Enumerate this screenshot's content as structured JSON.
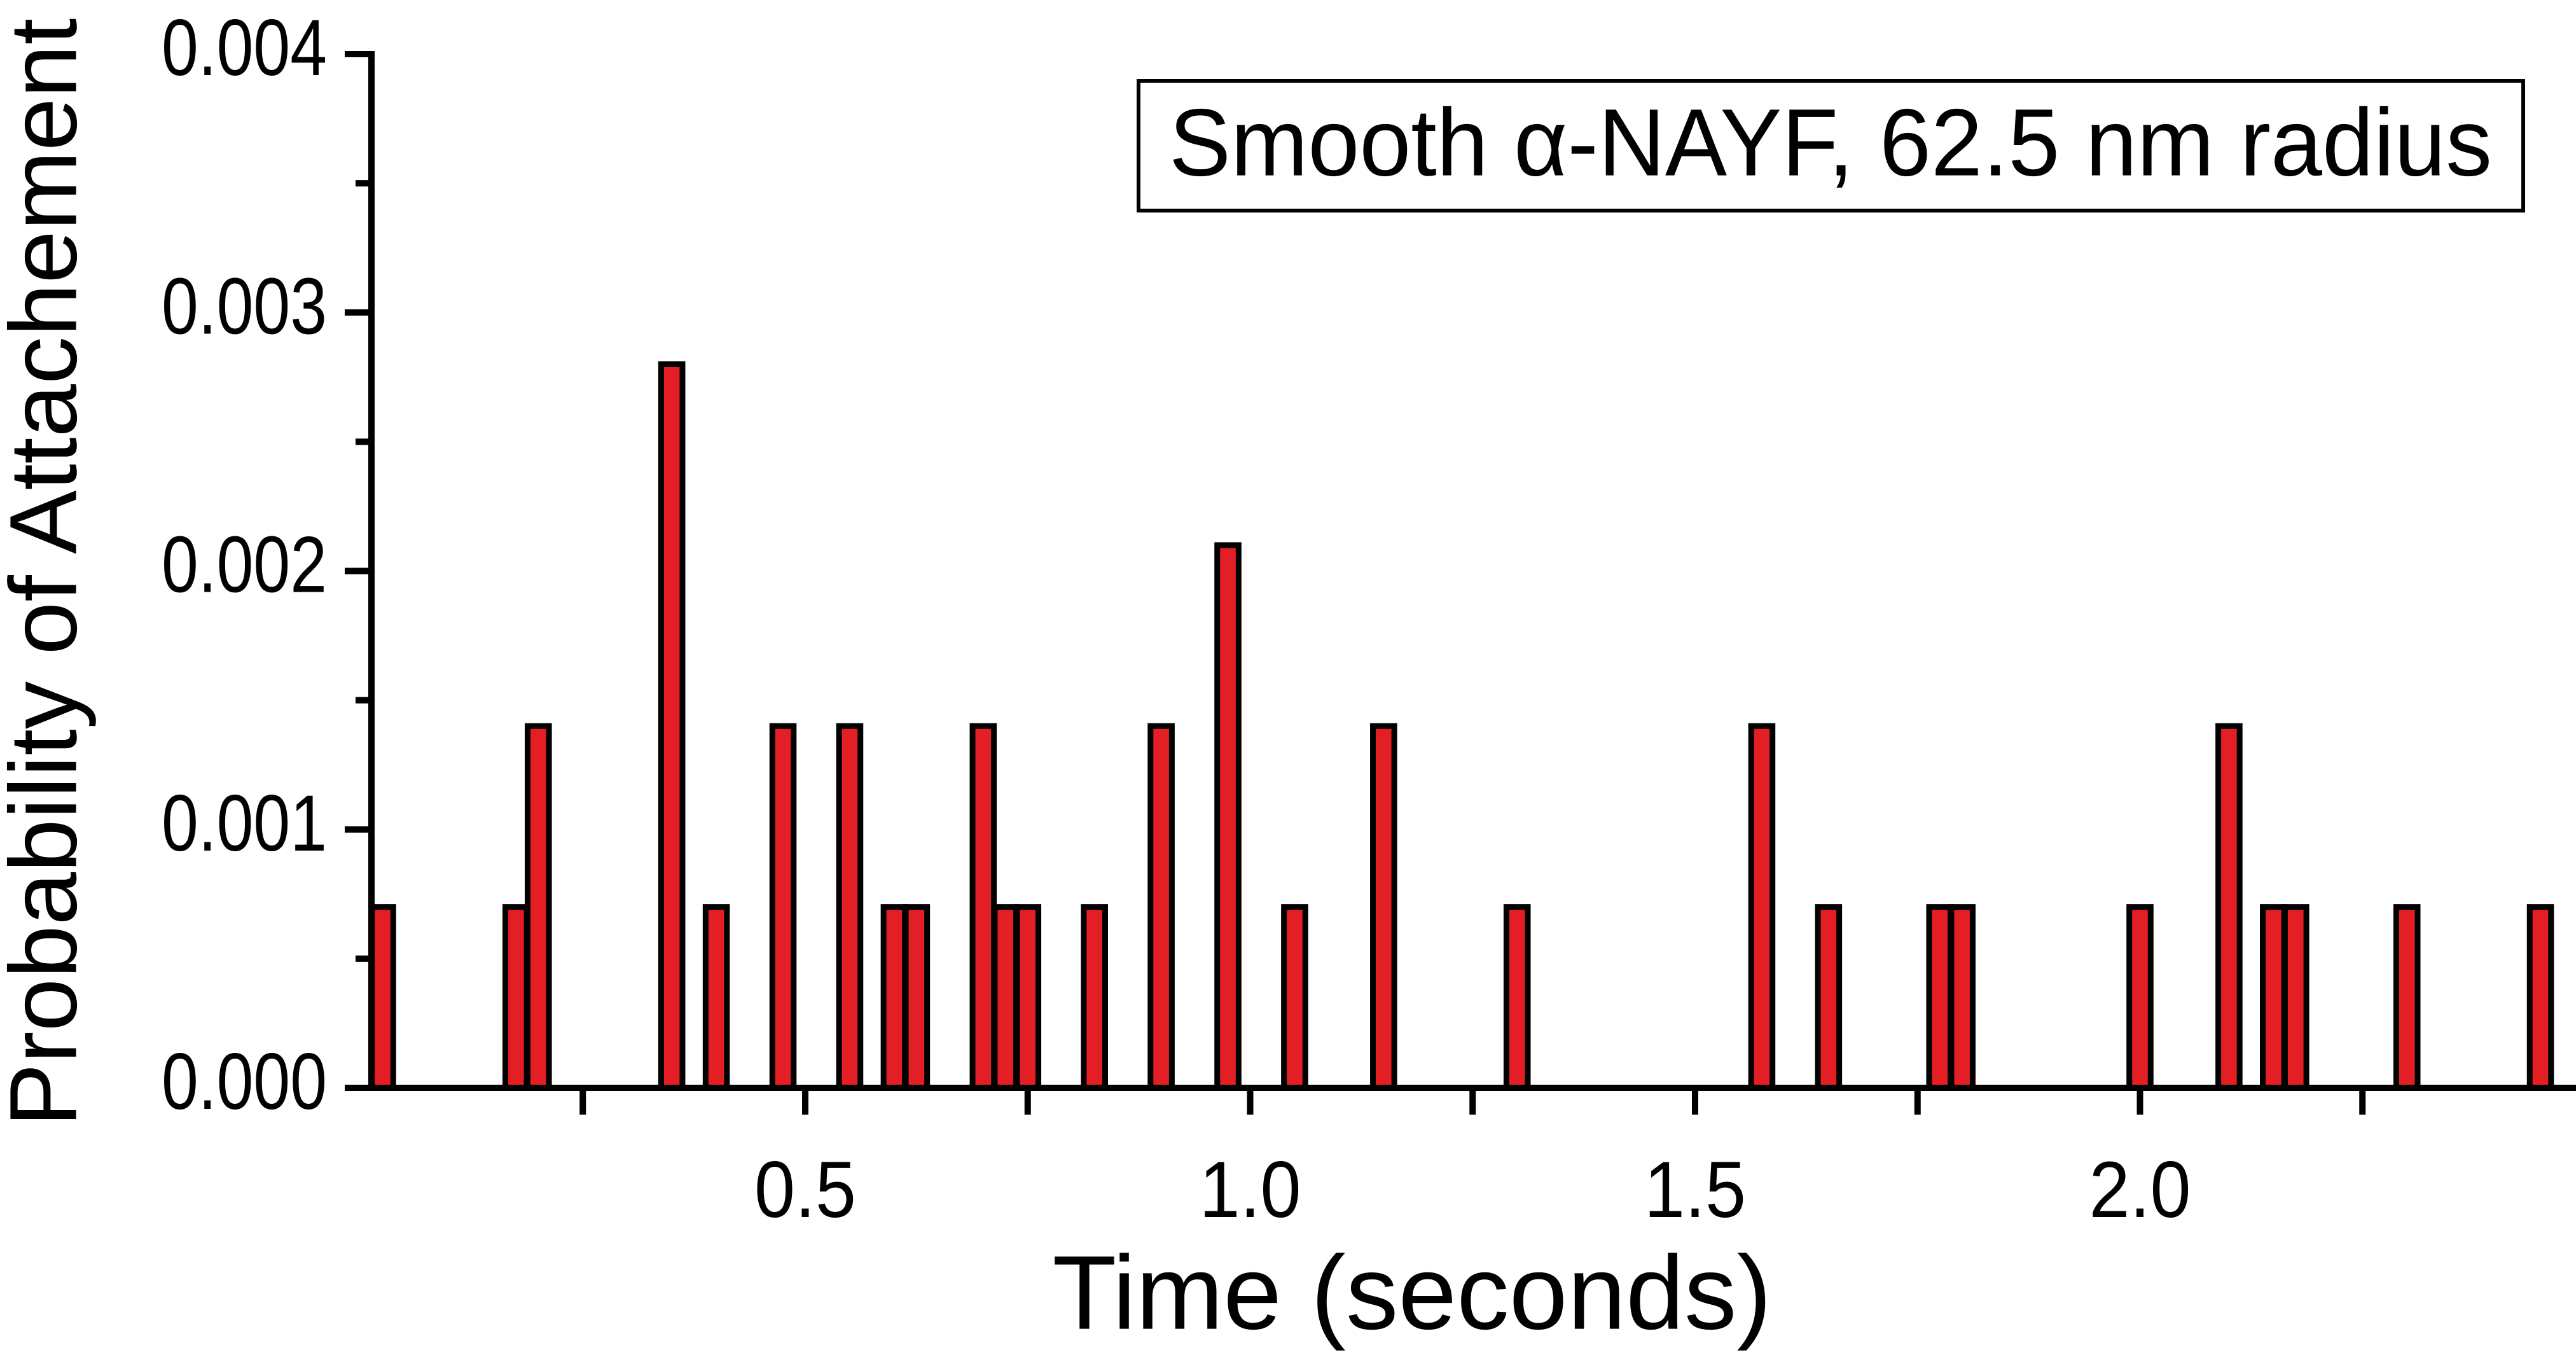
{
  "chart_data": {
    "type": "bar",
    "title": "Smooth α-NAYF, 62.5 nm radius",
    "x_label": "Time (seconds)",
    "y_label": "Probability of Attachement",
    "x": [
      0.025,
      0.175,
      0.2,
      0.35,
      0.4,
      0.475,
      0.55,
      0.6,
      0.625,
      0.7,
      0.725,
      0.75,
      0.825,
      0.9,
      0.975,
      1.05,
      1.15,
      1.3,
      1.575,
      1.65,
      1.775,
      1.8,
      2.0,
      2.1,
      2.15,
      2.175,
      2.3,
      2.45
    ],
    "values": [
      0.0007,
      0.0007,
      0.0014,
      0.0028,
      0.0007,
      0.0014,
      0.0014,
      0.0007,
      0.0007,
      0.0014,
      0.0007,
      0.0007,
      0.0007,
      0.0014,
      0.0021,
      0.0007,
      0.0014,
      0.0007,
      0.0014,
      0.0007,
      0.0007,
      0.0007,
      0.0007,
      0.0014,
      0.0007,
      0.0007,
      0.0007,
      0.0007
    ],
    "color": "#e31e24",
    "xlim": [
      0.0125,
      2.49
    ],
    "ylim": [
      0,
      0.004
    ],
    "xticks": [
      0.5,
      {
        "value": 1,
        "label": "1.0"
      },
      1.5,
      {
        "value": 2,
        "label": "2.0"
      }
    ],
    "x_minor_ticks": [
      0.25,
      0.75,
      1.25,
      1.75,
      2.25
    ],
    "yticks": [
      {
        "value": 0,
        "label": "0.000"
      },
      {
        "value": 0.001,
        "label": "0.001"
      },
      {
        "value": 0.002,
        "label": "0.002"
      },
      {
        "value": 0.003,
        "label": "0.003"
      },
      {
        "value": 0.004,
        "label": "0.004"
      }
    ],
    "y_minor_ticks": [
      0.0005,
      0.0015,
      0.0025,
      0.0035
    ],
    "grid": false
  }
}
